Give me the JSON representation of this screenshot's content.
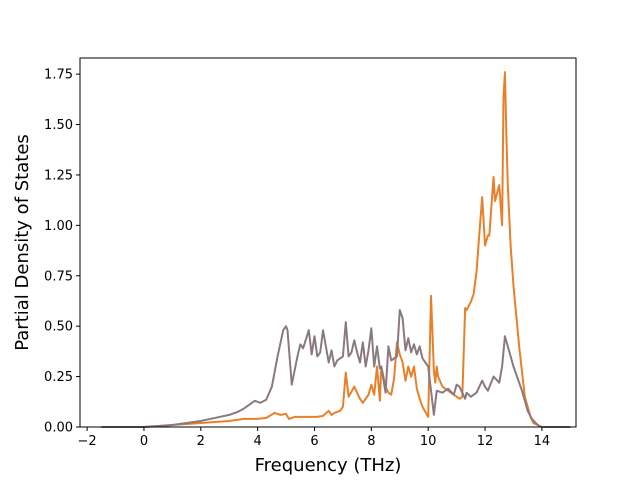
{
  "chart_data": {
    "type": "line",
    "title": "",
    "xlabel": "Frequency (THz)",
    "ylabel": "Partial Density of States",
    "xlim": [
      -2.25,
      15.2
    ],
    "ylim": [
      0,
      1.83
    ],
    "x_ticks": [
      -2,
      0,
      2,
      4,
      6,
      8,
      10,
      12,
      14
    ],
    "y_ticks": [
      0.0,
      0.25,
      0.5,
      0.75,
      1.0,
      1.25,
      1.5,
      1.75
    ],
    "x_tick_labels": [
      "−2",
      "0",
      "2",
      "4",
      "6",
      "8",
      "10",
      "12",
      "14"
    ],
    "y_tick_labels": [
      "0.00",
      "0.25",
      "0.50",
      "0.75",
      "1.00",
      "1.25",
      "1.50",
      "1.75"
    ],
    "grid": false,
    "legend": "none",
    "series": [
      {
        "color": "#e8802a",
        "x": [
          -1.5,
          0.0,
          0.5,
          1.0,
          1.5,
          2.0,
          2.5,
          3.0,
          3.5,
          4.0,
          4.3,
          4.6,
          4.8,
          5.0,
          5.1,
          5.3,
          5.5,
          5.7,
          5.9,
          6.1,
          6.3,
          6.5,
          6.6,
          6.7,
          6.9,
          7.0,
          7.1,
          7.2,
          7.4,
          7.6,
          7.7,
          7.9,
          8.0,
          8.1,
          8.2,
          8.3,
          8.35,
          8.5,
          8.6,
          8.7,
          8.8,
          8.9,
          9.0,
          9.1,
          9.2,
          9.3,
          9.4,
          9.5,
          9.6,
          9.7,
          9.8,
          10.0,
          10.1,
          10.2,
          10.25,
          10.3,
          10.35,
          10.5,
          10.8,
          11.0,
          11.1,
          11.2,
          11.3,
          11.35,
          11.5,
          11.6,
          11.7,
          11.8,
          11.9,
          12.0,
          12.1,
          12.15,
          12.3,
          12.35,
          12.5,
          12.6,
          12.65,
          12.7,
          12.75,
          12.8,
          12.9,
          13.0,
          13.2,
          13.4,
          13.6,
          13.7,
          13.85,
          14.0,
          15.0
        ],
        "y": [
          0.0,
          0.0,
          0.005,
          0.01,
          0.015,
          0.02,
          0.025,
          0.03,
          0.04,
          0.04,
          0.045,
          0.07,
          0.06,
          0.065,
          0.04,
          0.05,
          0.05,
          0.05,
          0.05,
          0.05,
          0.055,
          0.08,
          0.06,
          0.07,
          0.08,
          0.1,
          0.27,
          0.15,
          0.2,
          0.14,
          0.12,
          0.16,
          0.21,
          0.16,
          0.3,
          0.13,
          0.3,
          0.2,
          0.17,
          0.16,
          0.24,
          0.42,
          0.36,
          0.32,
          0.23,
          0.3,
          0.25,
          0.3,
          0.19,
          0.14,
          0.1,
          0.05,
          0.65,
          0.28,
          0.22,
          0.3,
          0.25,
          0.2,
          0.17,
          0.15,
          0.14,
          0.15,
          0.59,
          0.58,
          0.62,
          0.66,
          0.77,
          0.96,
          1.14,
          0.9,
          0.95,
          0.95,
          1.24,
          1.12,
          1.2,
          1.0,
          1.64,
          1.76,
          1.45,
          1.2,
          0.9,
          0.7,
          0.4,
          0.15,
          0.05,
          0.02,
          0.01,
          0.0,
          0.0
        ]
      },
      {
        "color": "#8a7a80",
        "x": [
          -1.5,
          0.0,
          0.5,
          1.0,
          1.5,
          2.0,
          2.5,
          3.0,
          3.3,
          3.5,
          3.7,
          3.9,
          4.1,
          4.3,
          4.5,
          4.7,
          4.9,
          5.0,
          5.05,
          5.2,
          5.4,
          5.5,
          5.6,
          5.8,
          5.9,
          6.0,
          6.1,
          6.2,
          6.3,
          6.5,
          6.6,
          6.7,
          6.8,
          6.9,
          7.0,
          7.1,
          7.2,
          7.3,
          7.4,
          7.5,
          7.6,
          7.7,
          7.8,
          7.9,
          8.0,
          8.1,
          8.2,
          8.3,
          8.35,
          8.5,
          8.6,
          8.7,
          8.9,
          9.0,
          9.1,
          9.2,
          9.3,
          9.4,
          9.5,
          9.6,
          9.7,
          9.8,
          10.0,
          10.2,
          10.3,
          10.5,
          10.7,
          10.9,
          11.0,
          11.1,
          11.3,
          11.35,
          11.5,
          11.7,
          11.9,
          12.0,
          12.1,
          12.3,
          12.5,
          12.6,
          12.7,
          12.8,
          13.0,
          13.3,
          13.5,
          13.65,
          13.85,
          14.0,
          15.0
        ],
        "y": [
          0.0,
          0.0,
          0.005,
          0.01,
          0.02,
          0.03,
          0.045,
          0.06,
          0.075,
          0.09,
          0.11,
          0.13,
          0.12,
          0.135,
          0.2,
          0.35,
          0.48,
          0.5,
          0.48,
          0.21,
          0.35,
          0.41,
          0.39,
          0.48,
          0.36,
          0.45,
          0.35,
          0.37,
          0.48,
          0.32,
          0.38,
          0.3,
          0.33,
          0.34,
          0.35,
          0.52,
          0.35,
          0.37,
          0.43,
          0.37,
          0.32,
          0.42,
          0.3,
          0.38,
          0.49,
          0.3,
          0.4,
          0.29,
          0.3,
          0.17,
          0.4,
          0.33,
          0.35,
          0.58,
          0.54,
          0.38,
          0.44,
          0.37,
          0.41,
          0.36,
          0.4,
          0.34,
          0.3,
          0.06,
          0.18,
          0.17,
          0.19,
          0.16,
          0.21,
          0.2,
          0.14,
          0.17,
          0.15,
          0.17,
          0.23,
          0.2,
          0.18,
          0.25,
          0.22,
          0.3,
          0.45,
          0.4,
          0.3,
          0.18,
          0.08,
          0.04,
          0.01,
          0.0,
          0.0
        ]
      }
    ]
  }
}
